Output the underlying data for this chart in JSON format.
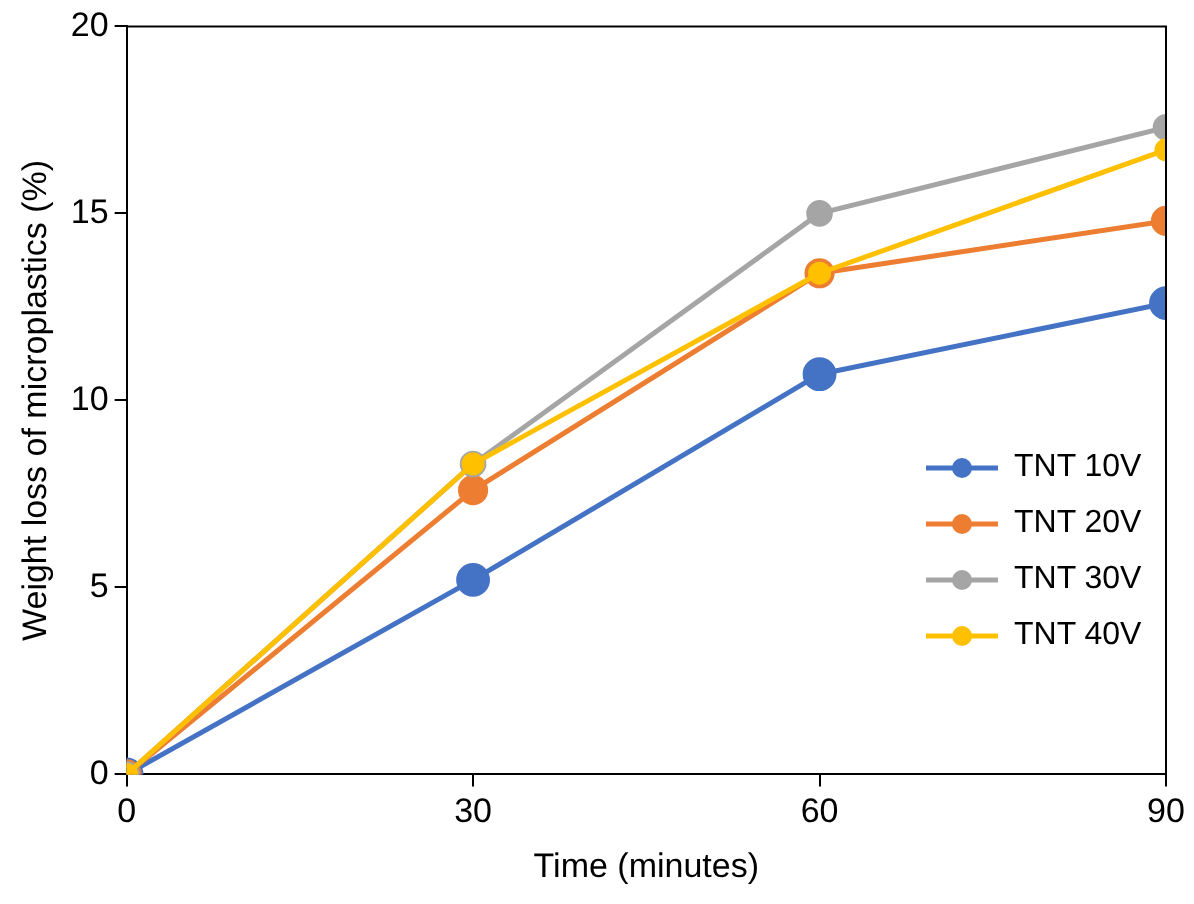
{
  "chart_data": {
    "type": "line",
    "xlabel": "Time (minutes)",
    "ylabel": "Weight loss of microplastics (%)",
    "x": [
      0,
      30,
      60,
      90
    ],
    "xlim": [
      0,
      90
    ],
    "xticks": [
      0,
      30,
      60,
      90
    ],
    "ylim": [
      0,
      20
    ],
    "yticks": [
      0,
      5,
      10,
      15,
      20
    ],
    "series": [
      {
        "name": "TNT 10V",
        "color": "#4472c4",
        "values": [
          0,
          5.2,
          10.7,
          12.6
        ]
      },
      {
        "name": "TNT 20V",
        "color": "#ed7d31",
        "values": [
          0,
          7.6,
          13.4,
          14.8
        ]
      },
      {
        "name": "TNT 30V",
        "color": "#a5a5a5",
        "values": [
          0,
          8.3,
          15.0,
          17.3
        ]
      },
      {
        "name": "TNT 40V",
        "color": "#ffc000",
        "values": [
          0,
          8.3,
          13.4,
          16.7
        ]
      }
    ],
    "grid": false,
    "legend": "right",
    "marker": "circle",
    "line_style": "solid"
  }
}
